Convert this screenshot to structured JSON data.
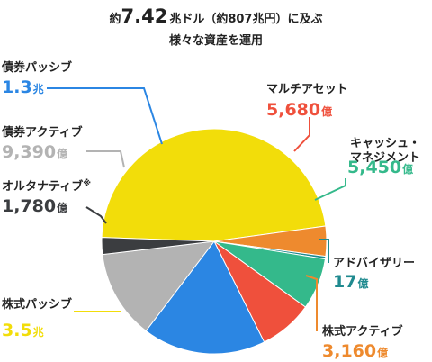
{
  "title": {
    "prefix": "約",
    "amount": "7.42",
    "suffix": "兆ドル（約807兆円）に及ぶ",
    "line2": "様々な資産を運用"
  },
  "colors": {
    "passive_equity": "#f2dd0a",
    "active_equity": "#ee8a2e",
    "advisory": "#1f8a8f",
    "cash_management": "#34b98b",
    "multi_asset": "#ef503c",
    "passive_bond": "#2b86e3",
    "active_bond": "#b3b3b3",
    "alternatives": "#3b3d40"
  },
  "chart_data": {
    "type": "pie",
    "title": "約7.42兆ドル（約807兆円）に及ぶ 様々な資産を運用",
    "slices": [
      {
        "key": "passive_equity",
        "name": "株式パッシブ",
        "value_text": "3.5",
        "unit": "兆",
        "value_oku": 35000,
        "note": ""
      },
      {
        "key": "active_equity",
        "name": "株式アクティブ",
        "value_text": "3,160",
        "unit": "億",
        "value_oku": 3160,
        "note": ""
      },
      {
        "key": "advisory",
        "name": "アドバイザリー",
        "value_text": "17",
        "unit": "億",
        "value_oku": 17,
        "note": ""
      },
      {
        "key": "cash_management",
        "name": "キャッシュ・\nマネジメント",
        "value_text": "5,450",
        "unit": "億",
        "value_oku": 5450,
        "note": ""
      },
      {
        "key": "multi_asset",
        "name": "マルチアセット",
        "value_text": "5,680",
        "unit": "億",
        "value_oku": 5680,
        "note": ""
      },
      {
        "key": "passive_bond",
        "name": "債券パッシブ",
        "value_text": "1.3",
        "unit": "兆",
        "value_oku": 13000,
        "note": ""
      },
      {
        "key": "active_bond",
        "name": "債券アクティブ",
        "value_text": "9,390",
        "unit": "億",
        "value_oku": 9390,
        "note": ""
      },
      {
        "key": "alternatives",
        "name": "オルタナティブ",
        "value_text": "1,780",
        "unit": "億",
        "value_oku": 1780,
        "note": "※"
      }
    ]
  }
}
